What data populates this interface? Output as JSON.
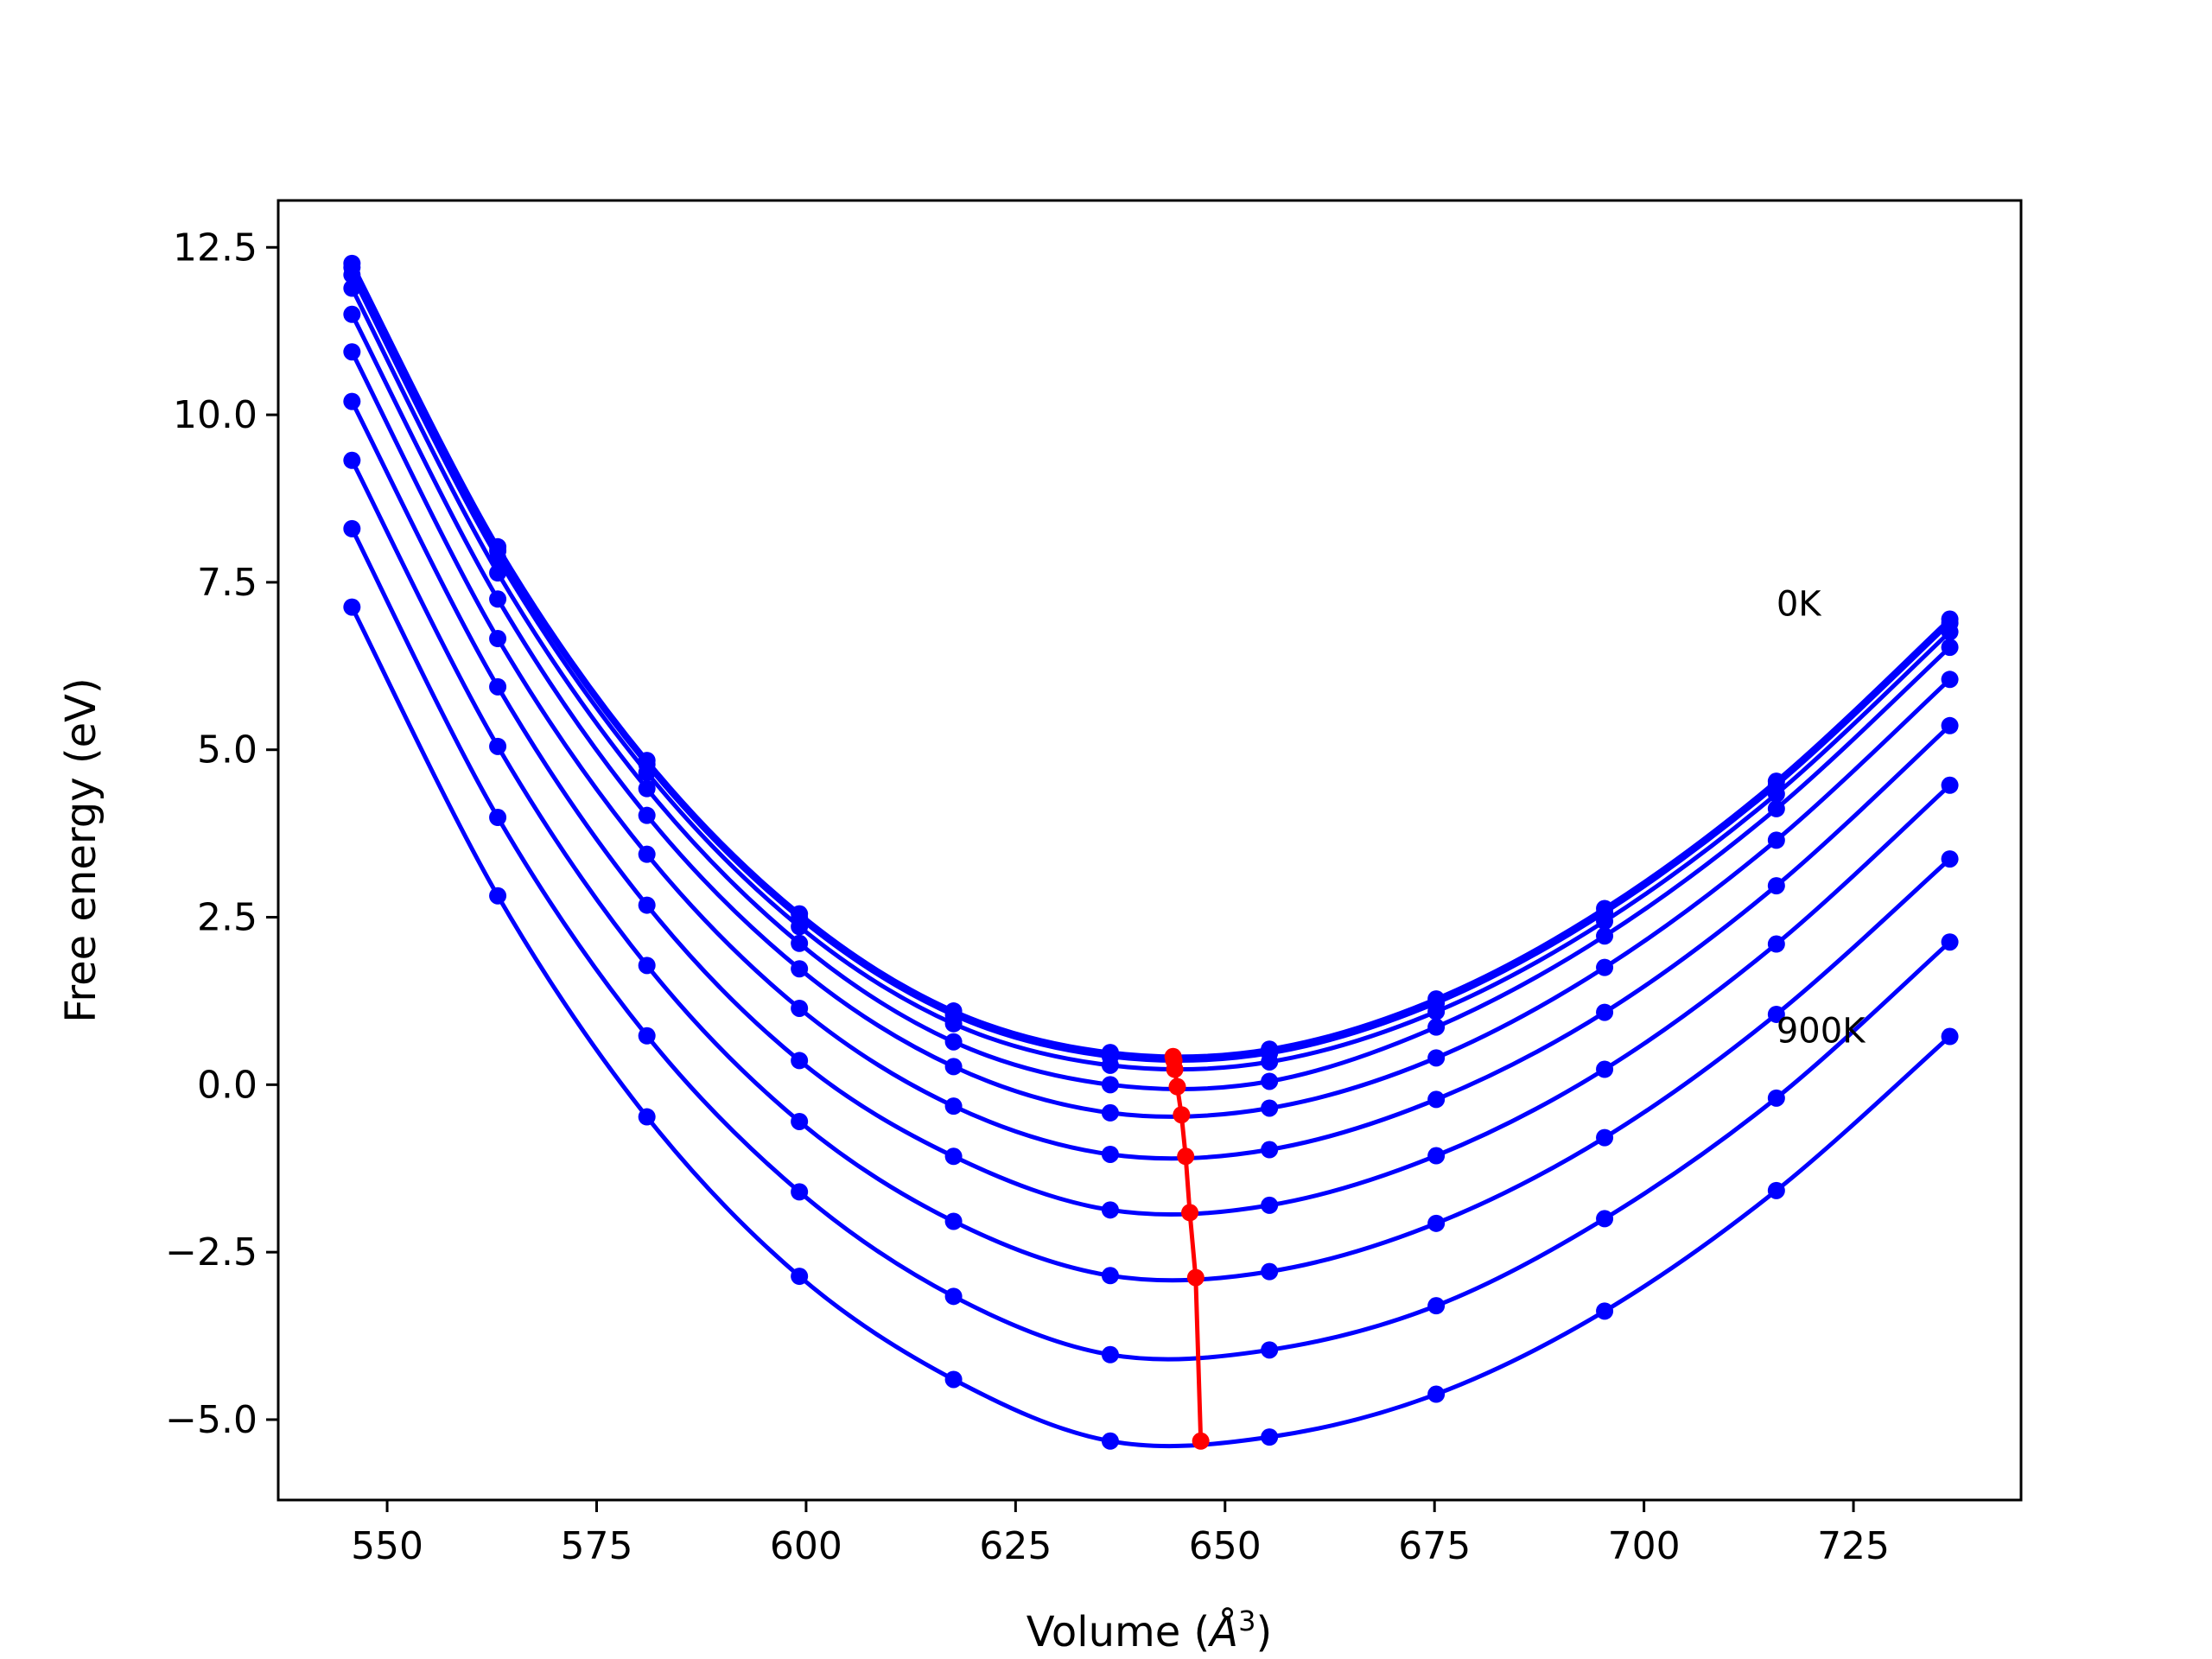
{
  "chart_data": {
    "type": "line",
    "title": "",
    "xlabel": "Volume (",
    "xlabel_unit": "Å",
    "xlabel_exp": "3",
    "xlabel_close": ")",
    "ylabel": "Free energy (eV)",
    "xlim": [
      537,
      745
    ],
    "ylim": [
      -6.2,
      13.2
    ],
    "xticks": [
      550,
      575,
      600,
      625,
      650,
      675,
      700,
      725
    ],
    "xtick_labels": [
      "550",
      "575",
      "600",
      "625",
      "650",
      "675",
      "700",
      "725"
    ],
    "yticks": [
      -5.0,
      -2.5,
      0.0,
      2.5,
      5.0,
      7.5,
      10.0,
      12.5
    ],
    "ytick_labels": [
      "−5.0",
      "−2.5",
      "0.0",
      "2.5",
      "5.0",
      "7.5",
      "10.0",
      "12.5"
    ],
    "grid": false,
    "x": [
      545.8,
      563.2,
      581.0,
      599.2,
      617.6,
      636.3,
      655.3,
      675.2,
      695.3,
      715.8,
      736.5
    ],
    "series": [
      {
        "values": [
          12.26,
          8.03,
          4.84,
          2.55,
          1.1,
          0.48,
          0.53,
          1.28,
          2.63,
          4.53,
          6.95
        ]
      },
      {
        "values": [
          12.2,
          7.97,
          4.78,
          2.49,
          1.04,
          0.42,
          0.47,
          1.22,
          2.57,
          4.47,
          6.89
        ]
      },
      {
        "values": [
          12.09,
          7.86,
          4.66,
          2.36,
          0.91,
          0.29,
          0.34,
          1.09,
          2.44,
          4.34,
          6.76
        ]
      },
      {
        "values": [
          11.89,
          7.64,
          4.42,
          2.11,
          0.64,
          0.0,
          0.05,
          0.86,
          2.22,
          4.12,
          6.53
        ]
      },
      {
        "values": [
          11.5,
          7.25,
          4.02,
          1.73,
          0.27,
          -0.42,
          -0.35,
          0.4,
          1.75,
          3.65,
          6.05
        ]
      },
      {
        "values": [
          10.94,
          6.66,
          3.44,
          1.14,
          -0.32,
          -1.04,
          -0.97,
          -0.22,
          1.08,
          2.97,
          5.36
        ]
      },
      {
        "values": [
          10.2,
          5.94,
          2.68,
          0.36,
          -1.07,
          -1.87,
          -1.8,
          -1.06,
          0.23,
          2.1,
          4.47
        ]
      },
      {
        "values": [
          9.32,
          5.05,
          1.78,
          -0.55,
          -2.04,
          -2.85,
          -2.79,
          -2.07,
          -0.79,
          1.05,
          3.37
        ]
      },
      {
        "values": [
          8.3,
          3.99,
          0.73,
          -1.6,
          -3.16,
          -4.03,
          -3.96,
          -3.3,
          -2.0,
          -0.2,
          2.13
        ]
      },
      {
        "values": [
          7.13,
          2.82,
          -0.48,
          -2.86,
          -4.4,
          -5.32,
          -5.26,
          -4.62,
          -3.38,
          -1.58,
          0.72
        ]
      }
    ],
    "series_color": "#0000ff",
    "minimum_path": {
      "color": "#ff0000",
      "x": [
        643.8,
        643.9,
        644.0,
        644.3,
        644.8,
        645.3,
        645.8,
        646.5,
        647.1
      ],
      "y": [
        0.42,
        0.36,
        0.23,
        -0.03,
        -0.45,
        -1.07,
        -1.91,
        -2.88,
        -5.32
      ]
    },
    "annotations": [
      {
        "text": "0K",
        "x": 715.8,
        "y": 7.0
      },
      {
        "text": "900K",
        "x": 715.8,
        "y": 0.63
      }
    ]
  }
}
